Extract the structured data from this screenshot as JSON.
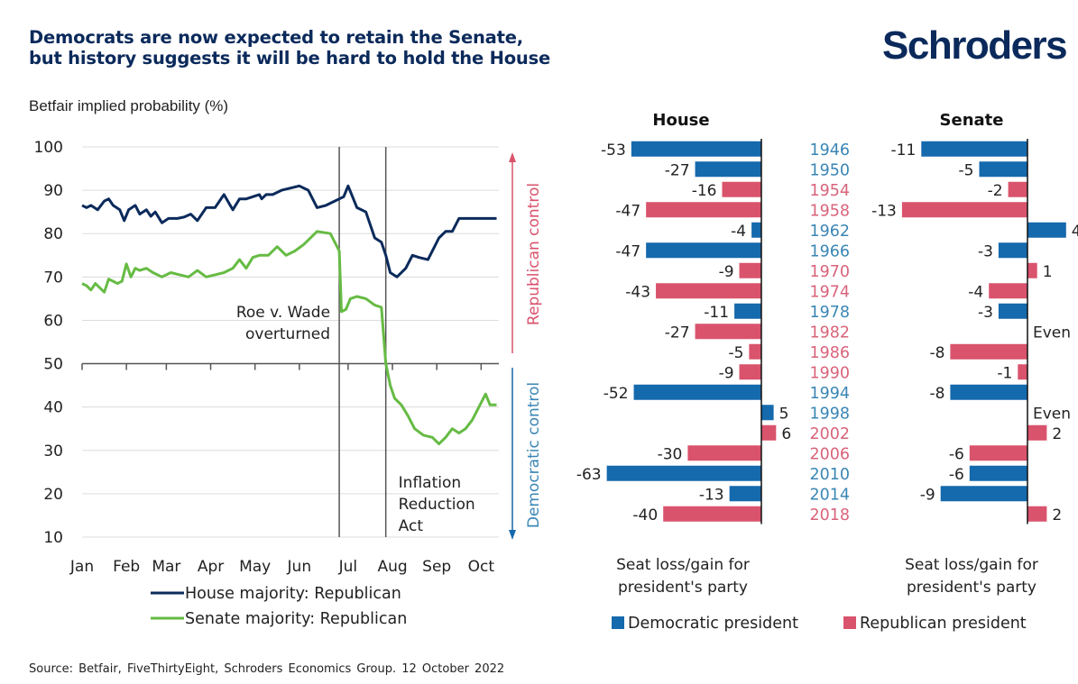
{
  "header": {
    "title_line1": "Democrats are now expected to retain the Senate,",
    "title_line2": "but history suggests it will be hard to hold the House",
    "logo": "Schroders"
  },
  "footer": {
    "source": "Source: Betfair, FiveThirtyEight, Schroders Economics Group. 12 October 2022"
  },
  "colors": {
    "house_line": "#0b2a5b",
    "senate_line": "#66bb44",
    "democratic": "#1569ad",
    "republican": "#d9536c",
    "republican_year": "#d9637a",
    "democratic_year": "#3a86b5"
  },
  "chart_data": [
    {
      "type": "line",
      "title": "Betfair implied probability (%)",
      "ylabel": "Betfair implied probability (%)",
      "xlabel": "",
      "ylim": [
        10,
        100
      ],
      "yticks": [
        100,
        90,
        80,
        70,
        60,
        50,
        40,
        30,
        20,
        10
      ],
      "x_range": [
        0,
        9.4
      ],
      "x_tick_labels": [
        "Jan",
        "Feb",
        "Mar",
        "Apr",
        "May",
        "Jun",
        "Jul",
        "Aug",
        "Sep",
        "Oct"
      ],
      "x_tick_positions": [
        0,
        1,
        1.9,
        2.9,
        3.9,
        4.9,
        6.0,
        7.0,
        8.0,
        9.0
      ],
      "grid": true,
      "annotations": [
        {
          "text_line1": "Roe v. Wade",
          "text_line2": "overturned",
          "x": 5.8
        },
        {
          "text_line1": "Inflation",
          "text_line2": "Reduction",
          "text_line3": "Act",
          "x": 6.85
        }
      ],
      "side_labels": {
        "top": "Republican control",
        "bottom": "Democratic control"
      },
      "legend": "bottom",
      "series": [
        {
          "name": "House majority: Republican",
          "x": [
            0,
            0.1,
            0.2,
            0.35,
            0.5,
            0.6,
            0.7,
            0.85,
            0.95,
            1.05,
            1.2,
            1.3,
            1.45,
            1.55,
            1.65,
            1.8,
            1.95,
            2.05,
            2.15,
            2.3,
            2.45,
            2.6,
            2.8,
            3.0,
            3.2,
            3.4,
            3.55,
            3.7,
            3.85,
            4.0,
            4.05,
            4.15,
            4.3,
            4.5,
            4.7,
            4.9,
            5.1,
            5.3,
            5.5,
            5.7,
            5.8,
            5.9,
            6.0,
            6.2,
            6.4,
            6.6,
            6.75,
            6.85,
            6.95,
            7.1,
            7.3,
            7.45,
            7.6,
            7.8,
            7.95,
            8.05,
            8.2,
            8.35,
            8.5,
            8.7,
            8.85,
            9.0,
            9.1,
            9.25,
            9.35
          ],
          "y": [
            86.5,
            86,
            86.5,
            85.5,
            87.5,
            88,
            86.5,
            85.5,
            83,
            85.5,
            86.5,
            84.5,
            85.5,
            84,
            85,
            82.5,
            83.5,
            83.5,
            83.5,
            83.8,
            84.5,
            83,
            86,
            86,
            89,
            85.5,
            88,
            88,
            88.5,
            89,
            88,
            89,
            89,
            90,
            90.5,
            91,
            90,
            86,
            86.5,
            87.5,
            88,
            88.5,
            91,
            86,
            85,
            79,
            78,
            75,
            71,
            70,
            72,
            75,
            74.5,
            74,
            77,
            79,
            80.5,
            80.5,
            83.5,
            83.5,
            83.5,
            83.5,
            83.5,
            83.5,
            83.5
          ]
        },
        {
          "name": "Senate majority: Republican",
          "x": [
            0,
            0.1,
            0.2,
            0.3,
            0.4,
            0.5,
            0.6,
            0.7,
            0.8,
            0.9,
            1.0,
            1.1,
            1.2,
            1.3,
            1.45,
            1.6,
            1.8,
            2.0,
            2.2,
            2.4,
            2.6,
            2.8,
            3.0,
            3.2,
            3.4,
            3.55,
            3.7,
            3.85,
            4.0,
            4.2,
            4.4,
            4.6,
            4.8,
            5.0,
            5.3,
            5.6,
            5.8,
            5.85,
            5.95,
            6.05,
            6.2,
            6.4,
            6.6,
            6.75,
            6.85,
            6.95,
            7.05,
            7.2,
            7.35,
            7.5,
            7.7,
            7.9,
            8.05,
            8.2,
            8.35,
            8.5,
            8.65,
            8.8,
            8.95,
            9.1,
            9.2,
            9.35
          ],
          "y": [
            68.5,
            68,
            67,
            68.5,
            67.5,
            66.5,
            69.5,
            69,
            68.5,
            69,
            73,
            70,
            72,
            71.5,
            72,
            71,
            70,
            71,
            70.5,
            70,
            71.5,
            70,
            70.5,
            71,
            72,
            74,
            72,
            74.5,
            75,
            75,
            77,
            75,
            76,
            77.5,
            80.5,
            80,
            76,
            62,
            62.5,
            65,
            65.5,
            65,
            63.5,
            63,
            50,
            45,
            42,
            40.5,
            38,
            35,
            33.5,
            33,
            31.5,
            33,
            35,
            34,
            35,
            37,
            40,
            43,
            40.5,
            40.5
          ]
        }
      ]
    },
    {
      "type": "bar",
      "orientation": "horizontal",
      "title": "House",
      "xlabel": "Seat loss/gain for president's party",
      "categories": [
        "1946",
        "1950",
        "1954",
        "1958",
        "1962",
        "1966",
        "1970",
        "1974",
        "1978",
        "1982",
        "1986",
        "1990",
        "1994",
        "1998",
        "2002",
        "2006",
        "2010",
        "2014",
        "2018"
      ],
      "party": [
        "D",
        "D",
        "R",
        "R",
        "D",
        "D",
        "R",
        "R",
        "D",
        "R",
        "R",
        "R",
        "D",
        "D",
        "R",
        "R",
        "D",
        "D",
        "R"
      ],
      "values": [
        -53,
        -27,
        -16,
        -47,
        -4,
        -47,
        -9,
        -43,
        -11,
        -27,
        -5,
        -9,
        -52,
        5,
        6,
        -30,
        -63,
        -13,
        -40
      ],
      "value_labels": [
        "-53",
        "-27",
        "-16",
        "-47",
        "-4",
        "-47",
        "-9",
        "-43",
        "-11",
        "-27",
        "-5",
        "-9",
        "-52",
        "5",
        "6",
        "-30",
        "-63",
        "-13",
        "-40"
      ]
    },
    {
      "type": "bar",
      "orientation": "horizontal",
      "title": "Senate",
      "xlabel": "Seat loss/gain for president's party",
      "categories": [
        "1946",
        "1950",
        "1954",
        "1958",
        "1962",
        "1966",
        "1970",
        "1974",
        "1978",
        "1982",
        "1986",
        "1990",
        "1994",
        "1998",
        "2002",
        "2006",
        "2010",
        "2014",
        "2018"
      ],
      "party": [
        "D",
        "D",
        "R",
        "R",
        "D",
        "D",
        "R",
        "R",
        "D",
        "R",
        "R",
        "R",
        "D",
        "D",
        "R",
        "R",
        "D",
        "D",
        "R"
      ],
      "values": [
        -11,
        -5,
        -2,
        -13,
        4,
        -3,
        1,
        -4,
        -3,
        0,
        -8,
        -1,
        -8,
        0,
        2,
        -6,
        -6,
        -9,
        2
      ],
      "value_labels": [
        "-11",
        "-5",
        "-2",
        "-13",
        "4",
        "-3",
        "1",
        "-4",
        "-3",
        "Even",
        "-8",
        "-1",
        "-8",
        "Even",
        "2",
        "-6",
        "-6",
        "-9",
        "2"
      ]
    }
  ],
  "bar_legend": {
    "items": [
      {
        "label": "Democratic president",
        "party": "D"
      },
      {
        "label": "Republican president",
        "party": "R"
      }
    ]
  }
}
